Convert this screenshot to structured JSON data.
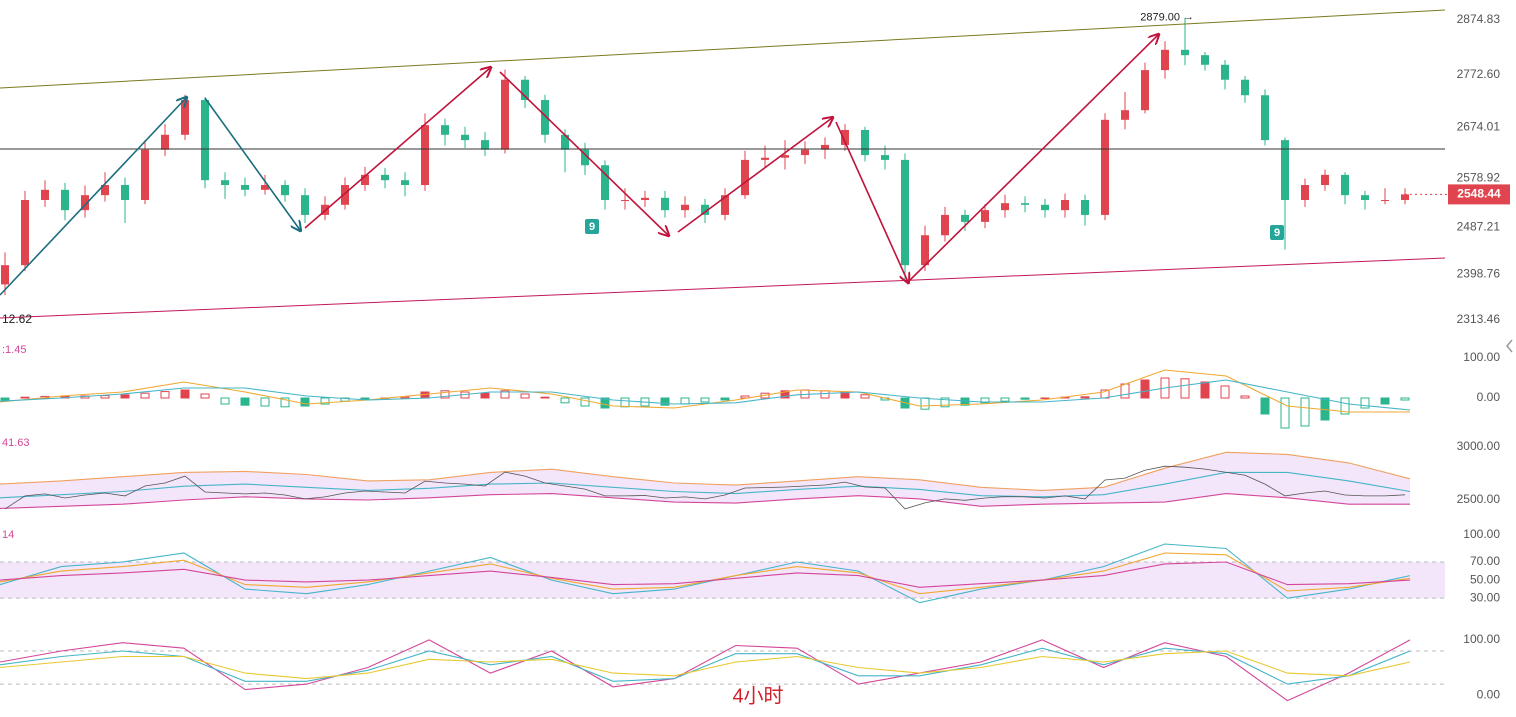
{
  "chart_data": [
    {
      "type": "candlestick",
      "ylim": [
        2294.7,
        2912.2
      ],
      "yticks": [
        {
          "value": 2874.83,
          "label": "2874.83"
        },
        {
          "value": 2772.6,
          "label": "2772.60"
        },
        {
          "value": 2674.01,
          "label": "2674.01"
        },
        {
          "value": 2578.92,
          "label": "2578.92"
        },
        {
          "value": 2487.21,
          "label": "2487.21"
        },
        {
          "value": 2398.76,
          "label": "2398.76"
        },
        {
          "value": 2313.46,
          "label": "2313.46"
        }
      ],
      "up_color": "#e0454f",
      "down_color": "#2bb58d",
      "open": [
        2380,
        2416,
        2538,
        2557,
        2519,
        2547,
        2566,
        2538,
        2632,
        2660,
        2725,
        2575,
        2566,
        2557,
        2566,
        2547,
        2510,
        2529,
        2566,
        2585,
        2575,
        2566,
        2678,
        2660,
        2650,
        2632,
        2763,
        2725,
        2660,
        2632,
        2603,
        2538,
        2538,
        2542,
        2519,
        2529,
        2510,
        2547,
        2613,
        2617,
        2622,
        2632,
        2641,
        2669,
        2622,
        2613,
        2416,
        2472,
        2510,
        2497,
        2519,
        2532,
        2529,
        2519,
        2538,
        2510,
        2688,
        2706,
        2781,
        2819,
        2809,
        2791,
        2763,
        2734,
        2650,
        2538,
        2566,
        2585,
        2547,
        2538,
        2538
      ],
      "high": [
        2440,
        2555,
        2575,
        2570,
        2565,
        2590,
        2580,
        2650,
        2680,
        2735,
        2730,
        2590,
        2580,
        2585,
        2575,
        2560,
        2545,
        2580,
        2600,
        2598,
        2590,
        2700,
        2690,
        2675,
        2665,
        2782,
        2770,
        2735,
        2670,
        2645,
        2612,
        2560,
        2555,
        2555,
        2545,
        2540,
        2560,
        2630,
        2640,
        2650,
        2648,
        2655,
        2680,
        2675,
        2640,
        2625,
        2490,
        2525,
        2520,
        2530,
        2548,
        2545,
        2540,
        2550,
        2548,
        2700,
        2740,
        2795,
        2835,
        2879,
        2815,
        2800,
        2770,
        2745,
        2655,
        2578,
        2595,
        2590,
        2555,
        2560,
        2560
      ],
      "low": [
        2360,
        2405,
        2525,
        2500,
        2505,
        2535,
        2495,
        2530,
        2620,
        2650,
        2560,
        2540,
        2545,
        2548,
        2535,
        2495,
        2500,
        2520,
        2555,
        2560,
        2545,
        2555,
        2640,
        2635,
        2620,
        2625,
        2710,
        2645,
        2590,
        2585,
        2520,
        2520,
        2525,
        2505,
        2505,
        2495,
        2500,
        2540,
        2600,
        2595,
        2605,
        2615,
        2630,
        2610,
        2595,
        2385,
        2405,
        2460,
        2480,
        2485,
        2505,
        2515,
        2505,
        2505,
        2490,
        2500,
        2670,
        2700,
        2765,
        2790,
        2780,
        2745,
        2720,
        2640,
        2445,
        2525,
        2555,
        2530,
        2520,
        2530,
        2530
      ],
      "close": [
        2416,
        2538,
        2557,
        2519,
        2547,
        2566,
        2538,
        2632,
        2660,
        2725,
        2575,
        2566,
        2557,
        2566,
        2547,
        2510,
        2529,
        2566,
        2585,
        2575,
        2566,
        2678,
        2660,
        2650,
        2632,
        2763,
        2725,
        2660,
        2632,
        2603,
        2538,
        2538,
        2542,
        2519,
        2529,
        2510,
        2547,
        2613,
        2617,
        2622,
        2632,
        2641,
        2669,
        2622,
        2613,
        2416,
        2472,
        2510,
        2497,
        2519,
        2532,
        2529,
        2519,
        2538,
        2510,
        2688,
        2706,
        2781,
        2819,
        2809,
        2791,
        2763,
        2734,
        2650,
        2538,
        2566,
        2585,
        2547,
        2538,
        2538,
        2548.44
      ],
      "high_label": {
        "value": 2879,
        "label": "2879.00"
      },
      "low_label": "12.62",
      "signals": [
        "9",
        "9"
      ]
    },
    {
      "type": "macd",
      "label": ":1.45",
      "ylim": [
        -85,
        150
      ],
      "yticks": [
        {
          "value": 100,
          "label": "100.00"
        },
        {
          "value": 0,
          "label": "0.00"
        }
      ],
      "histogram": [
        -5,
        2,
        4,
        5,
        5,
        6,
        8,
        12,
        16,
        20,
        10,
        -15,
        -18,
        -20,
        -22,
        -20,
        -15,
        -8,
        -3,
        0,
        3,
        15,
        18,
        15,
        12,
        18,
        10,
        2,
        -12,
        -20,
        -25,
        -22,
        -20,
        -18,
        -15,
        -10,
        -5,
        5,
        12,
        18,
        20,
        18,
        15,
        8,
        -5,
        -25,
        -28,
        -22,
        -18,
        -12,
        -8,
        -3,
        0,
        2,
        3,
        20,
        35,
        45,
        50,
        48,
        40,
        30,
        5,
        -40,
        -75,
        -70,
        -55,
        -40,
        -25,
        -15,
        -5
      ],
      "series": [
        {
          "color": "#f0a830",
          "values": [
            -10,
            5,
            15,
            40,
            15,
            -15,
            -5,
            10,
            25,
            10,
            -20,
            -25,
            -5,
            20,
            15,
            -20,
            -15,
            -5,
            15,
            70,
            55,
            -20,
            -35,
            -35
          ]
        },
        {
          "color": "#45b5c9",
          "values": [
            -8,
            0,
            10,
            25,
            25,
            5,
            -5,
            0,
            15,
            15,
            -5,
            -15,
            -12,
            8,
            15,
            0,
            -10,
            -10,
            0,
            25,
            45,
            15,
            -15,
            -30
          ]
        }
      ]
    },
    {
      "type": "bollinger",
      "label": "41.63",
      "ylim": [
        2311,
        3113
      ],
      "yticks": [
        {
          "value": 3000,
          "label": "3000.00"
        },
        {
          "value": 2500,
          "label": "2500.00"
        }
      ],
      "fill": "#f3e6fb",
      "series": [
        {
          "color": "#f0a060",
          "values": [
            2650,
            2680,
            2720,
            2760,
            2770,
            2740,
            2680,
            2690,
            2760,
            2790,
            2720,
            2660,
            2640,
            2680,
            2720,
            2690,
            2620,
            2590,
            2620,
            2800,
            2950,
            2930,
            2850,
            2700
          ]
        },
        {
          "color": "#45b5c9",
          "values": [
            2520,
            2550,
            2580,
            2630,
            2650,
            2620,
            2590,
            2610,
            2650,
            2660,
            2620,
            2580,
            2560,
            2600,
            2630,
            2600,
            2540,
            2530,
            2550,
            2650,
            2760,
            2760,
            2680,
            2580
          ]
        },
        {
          "color": "#d4469a",
          "values": [
            2420,
            2440,
            2460,
            2500,
            2530,
            2510,
            2500,
            2520,
            2550,
            2560,
            2520,
            2480,
            2470,
            2510,
            2540,
            2510,
            2440,
            2460,
            2470,
            2480,
            2560,
            2520,
            2460,
            2460
          ]
        }
      ]
    },
    {
      "type": "line",
      "label": "14",
      "ylim": [
        -3,
        111
      ],
      "yticks": [
        {
          "value": 100,
          "label": "100.00"
        },
        {
          "value": 70,
          "label": "70.00"
        },
        {
          "value": 50,
          "label": "50.00"
        },
        {
          "value": 30,
          "label": "30.00"
        }
      ],
      "band": [
        30,
        70
      ],
      "fill": "#f3e6fb",
      "series": [
        {
          "color": "#45b5c9",
          "values": [
            45,
            65,
            70,
            80,
            40,
            35,
            45,
            60,
            75,
            50,
            35,
            40,
            55,
            70,
            60,
            25,
            40,
            50,
            65,
            90,
            85,
            30,
            40,
            55
          ]
        },
        {
          "color": "#f0a830",
          "values": [
            48,
            60,
            65,
            72,
            45,
            42,
            48,
            58,
            68,
            52,
            40,
            42,
            55,
            65,
            58,
            35,
            42,
            50,
            60,
            80,
            78,
            38,
            42,
            52
          ]
        },
        {
          "color": "#d4469a",
          "values": [
            50,
            55,
            58,
            62,
            50,
            48,
            50,
            55,
            60,
            53,
            45,
            46,
            52,
            58,
            55,
            42,
            46,
            50,
            55,
            68,
            70,
            45,
            46,
            50
          ]
        }
      ]
    },
    {
      "type": "line",
      "ylim": [
        -36,
        118
      ],
      "yticks": [
        {
          "value": 100,
          "label": "100.00"
        },
        {
          "value": 0,
          "label": "0.00"
        }
      ],
      "ref_lines": [
        80,
        20
      ],
      "series": [
        {
          "color": "#d4469a",
          "values": [
            60,
            80,
            95,
            85,
            10,
            20,
            50,
            100,
            40,
            80,
            15,
            30,
            90,
            85,
            20,
            40,
            60,
            100,
            50,
            95,
            70,
            -10,
            40,
            100
          ]
        },
        {
          "color": "#45b5c9",
          "values": [
            55,
            70,
            80,
            70,
            25,
            25,
            45,
            80,
            55,
            70,
            25,
            30,
            75,
            75,
            35,
            35,
            55,
            85,
            55,
            85,
            75,
            20,
            35,
            80
          ]
        },
        {
          "color": "#e8c830",
          "values": [
            50,
            60,
            70,
            70,
            40,
            30,
            40,
            65,
            60,
            65,
            40,
            35,
            60,
            70,
            50,
            40,
            50,
            70,
            60,
            75,
            80,
            40,
            35,
            60
          ]
        }
      ]
    }
  ],
  "annotation": "4小时"
}
